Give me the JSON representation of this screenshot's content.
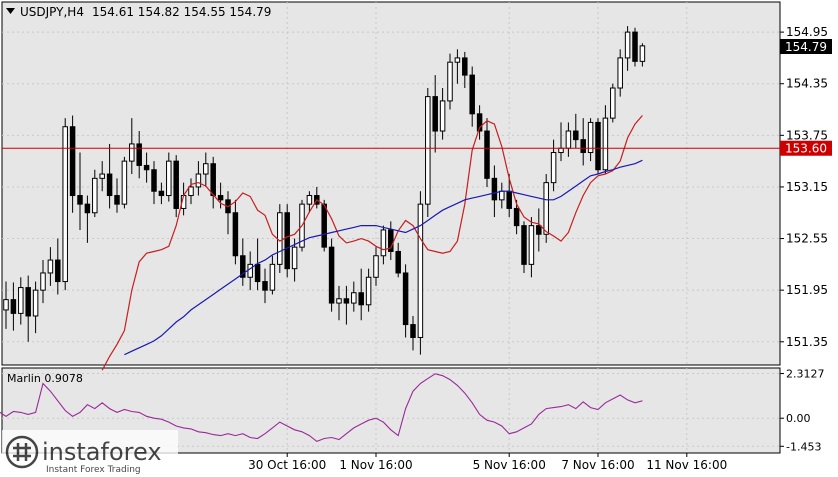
{
  "chart_data": [
    {
      "type": "candlestick",
      "symbol": "USDJPY,H4",
      "ohlc": "154.61 154.82 154.55 154.79",
      "y_ticks": [
        "154.95",
        "154.35",
        "153.75",
        "153.15",
        "152.55",
        "151.95",
        "151.35"
      ],
      "ylim": [
        151.08,
        155.3
      ],
      "x_ticks": [
        {
          "label": "30 Oct 16:00",
          "index": 38
        },
        {
          "label": "1 Nov 16:00",
          "index": 50
        },
        {
          "label": "5 Nov 16:00",
          "index": 68
        },
        {
          "label": "7 Nov 16:00",
          "index": 80
        },
        {
          "label": "11 Nov 16:00",
          "index": 92
        }
      ],
      "current_price": "154.79",
      "level": {
        "value": 153.6,
        "label": "153.60",
        "color": "#cc0000"
      },
      "candles": [
        [
          151.72,
          152.05,
          151.5,
          151.84
        ],
        [
          151.84,
          152.04,
          151.48,
          151.68
        ],
        [
          151.68,
          152.1,
          151.55,
          151.98
        ],
        [
          151.98,
          152.12,
          151.35,
          151.65
        ],
        [
          151.65,
          152.05,
          151.45,
          151.95
        ],
        [
          151.95,
          152.3,
          151.8,
          152.15
        ],
        [
          152.15,
          152.45,
          152.0,
          152.3
        ],
        [
          152.3,
          152.55,
          151.9,
          152.05
        ],
        [
          152.05,
          153.95,
          151.95,
          153.85
        ],
        [
          153.85,
          153.98,
          152.85,
          153.05
        ],
        [
          153.05,
          153.55,
          152.65,
          152.95
        ],
        [
          152.95,
          153.05,
          152.5,
          152.85
        ],
        [
          152.85,
          153.35,
          152.8,
          153.25
        ],
        [
          153.25,
          153.45,
          153.1,
          153.3
        ],
        [
          153.3,
          153.65,
          152.9,
          153.05
        ],
        [
          153.05,
          153.25,
          152.85,
          152.95
        ],
        [
          152.95,
          153.5,
          152.9,
          153.45
        ],
        [
          153.45,
          153.95,
          153.3,
          153.65
        ],
        [
          153.65,
          153.8,
          153.25,
          153.4
        ],
        [
          153.4,
          153.55,
          153.2,
          153.35
        ],
        [
          153.35,
          153.45,
          152.95,
          153.1
        ],
        [
          153.1,
          153.2,
          152.95,
          153.05
        ],
        [
          153.05,
          153.55,
          152.98,
          153.45
        ],
        [
          153.45,
          153.52,
          152.8,
          152.9
        ],
        [
          152.9,
          153.2,
          152.82,
          153.05
        ],
        [
          153.05,
          153.25,
          152.95,
          153.15
        ],
        [
          153.15,
          153.45,
          153.05,
          153.3
        ],
        [
          153.3,
          153.55,
          153.15,
          153.42
        ],
        [
          153.42,
          153.5,
          152.9,
          153.05
        ],
        [
          153.05,
          153.2,
          152.9,
          153.0
        ],
        [
          153.0,
          153.1,
          152.6,
          152.85
        ],
        [
          152.85,
          153.0,
          152.25,
          152.35
        ],
        [
          152.35,
          152.55,
          152.0,
          152.1
        ],
        [
          152.1,
          152.4,
          151.95,
          152.25
        ],
        [
          152.25,
          152.55,
          151.95,
          152.05
        ],
        [
          152.05,
          152.2,
          151.8,
          151.95
        ],
        [
          151.95,
          152.35,
          151.9,
          152.25
        ],
        [
          152.25,
          152.95,
          152.15,
          152.85
        ],
        [
          152.85,
          152.95,
          152.1,
          152.2
        ],
        [
          152.2,
          152.55,
          152.05,
          152.45
        ],
        [
          152.45,
          153.0,
          152.4,
          152.95
        ],
        [
          152.95,
          153.1,
          152.85,
          153.05
        ],
        [
          153.05,
          153.15,
          152.9,
          152.95
        ],
        [
          152.95,
          153.0,
          152.4,
          152.45
        ],
        [
          152.45,
          152.55,
          151.7,
          151.8
        ],
        [
          151.8,
          152.0,
          151.6,
          151.85
        ],
        [
          151.85,
          152.0,
          151.55,
          151.8
        ],
        [
          151.8,
          152.05,
          151.7,
          151.92
        ],
        [
          151.92,
          152.2,
          151.6,
          151.78
        ],
        [
          151.78,
          152.2,
          151.7,
          152.1
        ],
        [
          152.1,
          152.45,
          152.0,
          152.35
        ],
        [
          152.35,
          152.7,
          152.25,
          152.65
        ],
        [
          152.65,
          152.75,
          152.3,
          152.4
        ],
        [
          152.4,
          152.5,
          152.1,
          152.15
        ],
        [
          152.15,
          152.25,
          151.4,
          151.55
        ],
        [
          151.55,
          151.65,
          151.25,
          151.4
        ],
        [
          151.4,
          153.1,
          151.2,
          152.95
        ],
        [
          152.95,
          154.3,
          152.8,
          154.2
        ],
        [
          154.2,
          154.45,
          153.55,
          153.8
        ],
        [
          153.8,
          154.3,
          153.7,
          154.15
        ],
        [
          154.15,
          154.7,
          154.05,
          154.6
        ],
        [
          154.6,
          154.75,
          154.35,
          154.65
        ],
        [
          154.65,
          154.72,
          154.3,
          154.45
        ],
        [
          154.45,
          154.55,
          153.85,
          154.0
        ],
        [
          154.0,
          154.1,
          153.7,
          153.8
        ],
        [
          153.8,
          153.95,
          153.15,
          153.25
        ],
        [
          153.25,
          153.4,
          152.8,
          153.0
        ],
        [
          153.0,
          153.2,
          152.9,
          153.1
        ],
        [
          153.1,
          153.3,
          152.8,
          152.9
        ],
        [
          152.9,
          153.0,
          152.6,
          152.7
        ],
        [
          152.7,
          152.75,
          152.15,
          152.25
        ],
        [
          152.25,
          152.8,
          152.1,
          152.7
        ],
        [
          152.7,
          152.9,
          152.4,
          152.6
        ],
        [
          152.6,
          153.3,
          152.5,
          153.2
        ],
        [
          153.2,
          153.7,
          153.1,
          153.55
        ],
        [
          153.55,
          153.9,
          153.45,
          153.6
        ],
        [
          153.6,
          153.9,
          153.5,
          153.8
        ],
        [
          153.8,
          154.0,
          153.6,
          153.7
        ],
        [
          153.7,
          153.95,
          153.4,
          153.55
        ],
        [
          153.55,
          153.95,
          153.45,
          153.9
        ],
        [
          153.9,
          153.95,
          153.3,
          153.35
        ],
        [
          153.35,
          154.1,
          153.3,
          153.95
        ],
        [
          153.95,
          154.35,
          153.9,
          154.3
        ],
        [
          154.3,
          154.75,
          154.2,
          154.65
        ],
        [
          154.65,
          155.02,
          154.5,
          154.95
        ],
        [
          154.95,
          155.0,
          154.55,
          154.61
        ],
        [
          154.61,
          154.82,
          154.55,
          154.79
        ]
      ],
      "series": [
        {
          "color": "#c81e1e",
          "values": [
            151.02,
            151.18,
            151.32,
            151.48,
            151.95,
            152.28,
            152.38,
            152.4,
            152.42,
            152.46,
            152.7,
            153.05,
            153.18,
            153.2,
            153.16,
            153.06,
            152.96,
            152.92,
            152.98,
            153.08,
            153.04,
            152.88,
            152.82,
            152.6,
            152.52,
            152.57,
            152.6,
            152.7,
            152.86,
            153.0,
            152.94,
            152.78,
            152.58,
            152.5,
            152.52,
            152.55,
            152.52,
            152.46,
            152.42,
            152.44,
            152.64,
            152.76,
            152.7,
            152.55,
            152.42,
            152.4,
            152.38,
            152.4,
            152.52,
            152.95,
            153.58,
            153.84,
            153.92,
            153.88,
            153.62,
            153.25,
            152.95,
            152.8,
            152.74,
            152.72,
            152.63,
            152.58,
            152.52,
            152.62,
            152.85,
            153.05,
            153.2,
            153.28,
            153.3,
            153.34,
            153.45,
            153.72,
            153.88,
            153.98
          ]
        },
        {
          "color": "#1a1ab0",
          "values": [
            151.2,
            151.24,
            151.28,
            151.32,
            151.36,
            151.42,
            151.5,
            151.58,
            151.64,
            151.72,
            151.78,
            151.84,
            151.9,
            151.96,
            152.02,
            152.08,
            152.14,
            152.2,
            152.26,
            152.3,
            152.36,
            152.4,
            152.44,
            152.48,
            152.52,
            152.56,
            152.58,
            152.6,
            152.62,
            152.64,
            152.66,
            152.68,
            152.7,
            152.7,
            152.7,
            152.68,
            152.66,
            152.64,
            152.62,
            152.66,
            152.7,
            152.76,
            152.82,
            152.88,
            152.92,
            152.96,
            153.0,
            153.02,
            153.04,
            153.06,
            153.08,
            153.1,
            153.1,
            153.08,
            153.06,
            153.04,
            153.02,
            153.0,
            153.0,
            153.04,
            153.1,
            153.16,
            153.22,
            153.28,
            153.3,
            153.33,
            153.35,
            153.38,
            153.4,
            153.42,
            153.46
          ]
        }
      ]
    },
    {
      "type": "line",
      "name": "Marlin",
      "label": "Marlin 0.9078",
      "y_ticks": [
        "2.3127",
        "0.00",
        "-1.453"
      ],
      "ylim": [
        -1.8,
        2.6
      ],
      "color": "#9a2a9a",
      "values": [
        0.2,
        0.25,
        0.35,
        0.1,
        0.35,
        0.3,
        0.2,
        0.3,
        1.8,
        1.4,
        0.9,
        0.4,
        0.1,
        0.3,
        0.7,
        0.5,
        0.8,
        0.5,
        0.3,
        0.45,
        0.35,
        0.3,
        0.1,
        0.0,
        -0.05,
        -0.2,
        -0.4,
        -0.5,
        -0.55,
        -0.7,
        -0.75,
        -0.85,
        -0.9,
        -0.8,
        -0.9,
        -0.8,
        -1.0,
        -1.05,
        -0.8,
        -0.5,
        -0.2,
        -0.4,
        -0.6,
        -0.7,
        -0.9,
        -1.2,
        -1.05,
        -1.0,
        -1.1,
        -0.8,
        -0.5,
        -0.3,
        -0.1,
        0.0,
        -0.2,
        -0.6,
        -0.9,
        0.5,
        1.4,
        1.8,
        2.05,
        2.3,
        2.2,
        2.0,
        1.7,
        1.3,
        0.8,
        0.2,
        -0.1,
        -0.2,
        -0.4,
        -0.8,
        -0.7,
        -0.5,
        -0.3,
        0.2,
        0.5,
        0.55,
        0.6,
        0.7,
        0.5,
        0.85,
        0.55,
        0.45,
        0.8,
        1.0,
        1.2,
        0.95,
        0.8,
        0.9
      ]
    }
  ]
}
